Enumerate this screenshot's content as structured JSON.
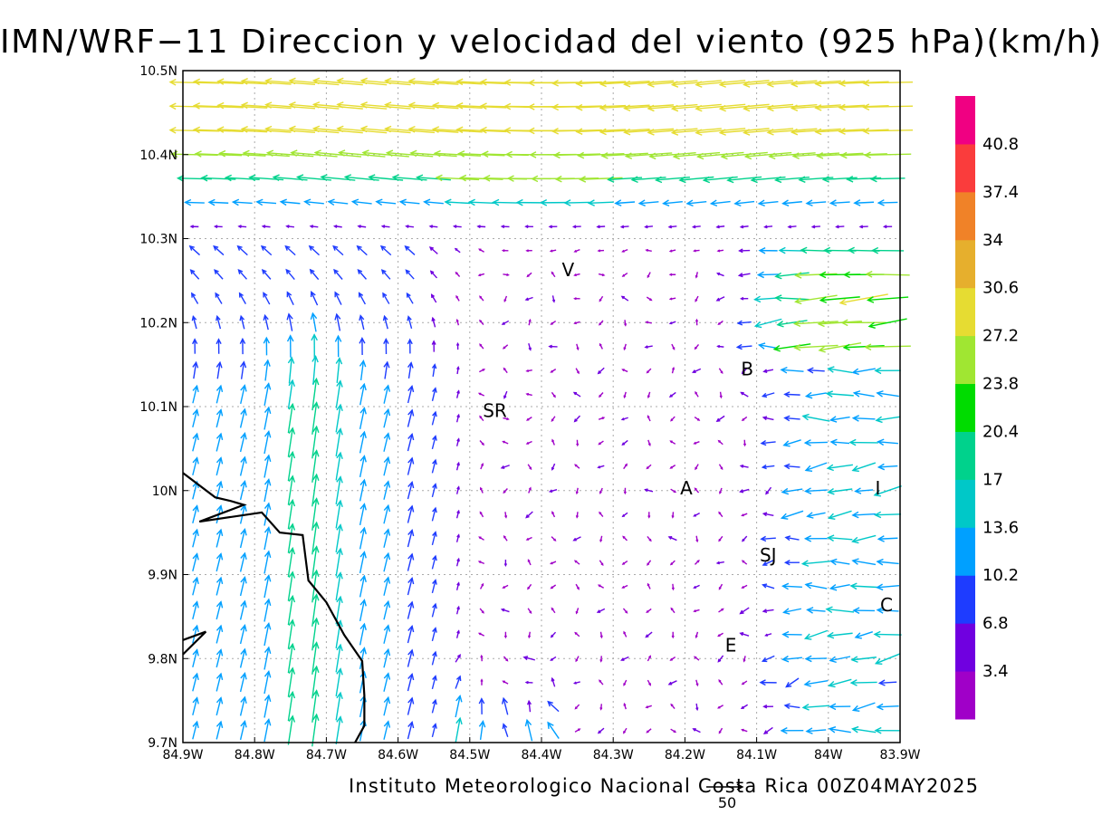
{
  "header": {
    "title": "IMN/WRF−11 Direccion y velocidad del viento (925 hPa)(km/h)"
  },
  "footer": {
    "credit": "Instituto Meteorologico Nacional Costa Rica 00Z04MAY2025"
  },
  "chart_data": {
    "type": "vector-field",
    "title": "IMN/WRF−11 Direccion y velocidad del viento (925 hPa)(km/h)",
    "level": "925 hPa",
    "units": "km/h",
    "xlim": [
      -84.9,
      -83.9
    ],
    "ylim": [
      9.7,
      10.5
    ],
    "x_ticks": [
      {
        "value": -84.9,
        "label": "84.9W"
      },
      {
        "value": -84.8,
        "label": "84.8W"
      },
      {
        "value": -84.7,
        "label": "84.7W"
      },
      {
        "value": -84.6,
        "label": "84.6W"
      },
      {
        "value": -84.5,
        "label": "84.5W"
      },
      {
        "value": -84.4,
        "label": "84.4W"
      },
      {
        "value": -84.3,
        "label": "84.3W"
      },
      {
        "value": -84.2,
        "label": "84.2W"
      },
      {
        "value": -84.1,
        "label": "84.1W"
      },
      {
        "value": -84.0,
        "label": "84W"
      },
      {
        "value": -83.9,
        "label": "83.9W"
      }
    ],
    "y_ticks": [
      {
        "value": 9.7,
        "label": "9.7N"
      },
      {
        "value": 9.8,
        "label": "9.8N"
      },
      {
        "value": 9.9,
        "label": "9.9N"
      },
      {
        "value": 10.0,
        "label": "10N"
      },
      {
        "value": 10.1,
        "label": "10.1N"
      },
      {
        "value": 10.2,
        "label": "10.2N"
      },
      {
        "value": 10.3,
        "label": "10.3N"
      },
      {
        "value": 10.4,
        "label": "10.4N"
      },
      {
        "value": 10.5,
        "label": "10.5N"
      }
    ],
    "grid": true,
    "colorbar": {
      "position": "right",
      "colors": [
        "#a000c8",
        "#7000e0",
        "#1e3cff",
        "#00a0ff",
        "#00c8c8",
        "#00d28c",
        "#00dc00",
        "#a0e632",
        "#e6dc32",
        "#e6af2d",
        "#f08228",
        "#fa3c3c",
        "#f00082"
      ],
      "labels": [
        "3.4",
        "6.8",
        "10.2",
        "13.6",
        "17",
        "20.4",
        "23.8",
        "27.2",
        "30.6",
        "34",
        "37.4",
        "40.8"
      ]
    },
    "reference_vector": {
      "label": "50",
      "speed": 50
    },
    "stations": [
      {
        "label": "V",
        "lon": -84.363,
        "lat": 10.263
      },
      {
        "label": "SR",
        "lon": -84.465,
        "lat": 10.095
      },
      {
        "label": "B",
        "lon": -84.113,
        "lat": 10.145
      },
      {
        "label": "A",
        "lon": -84.198,
        "lat": 10.003
      },
      {
        "label": "I",
        "lon": -83.931,
        "lat": 10.003
      },
      {
        "label": "SJ",
        "lon": -84.084,
        "lat": 9.923
      },
      {
        "label": "C",
        "lon": -83.919,
        "lat": 9.864
      },
      {
        "label": "E",
        "lon": -84.136,
        "lat": 9.816
      }
    ],
    "coastline": [
      [
        -84.9,
        10.021
      ],
      [
        -84.855,
        9.992
      ],
      [
        -84.835,
        9.988
      ],
      [
        -84.815,
        9.983
      ],
      [
        -84.877,
        9.963
      ],
      [
        -84.79,
        9.974
      ],
      [
        -84.765,
        9.95
      ],
      [
        -84.733,
        9.947
      ],
      [
        -84.725,
        9.893
      ],
      [
        -84.7,
        9.867
      ],
      [
        -84.675,
        9.828
      ],
      [
        -84.65,
        9.797
      ],
      [
        -84.647,
        9.756
      ],
      [
        -84.647,
        9.72
      ],
      [
        -84.66,
        9.7
      ]
    ],
    "coastline2": [
      [
        -84.9,
        9.822
      ],
      [
        -84.868,
        9.832
      ],
      [
        -84.9,
        9.805
      ]
    ]
  }
}
